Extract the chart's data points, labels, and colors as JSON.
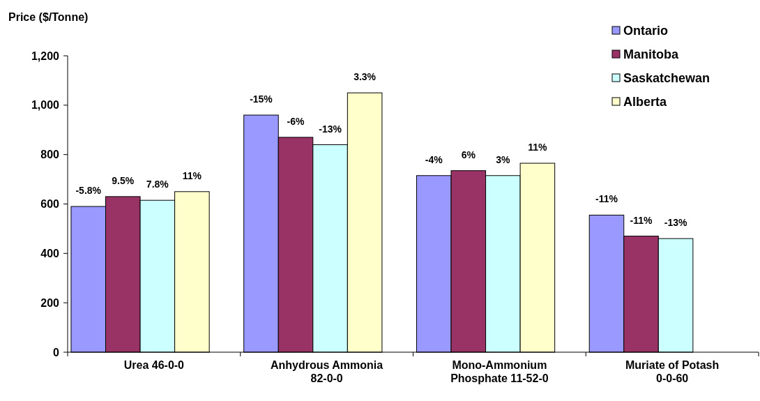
{
  "chart_data": {
    "type": "bar",
    "ylabel": "Price ($/Tonne)",
    "categories": [
      "Urea 46-0-0",
      "Anhydrous Ammonia\n82-0-0",
      "Mono-Ammonium\nPhosphate 11-52-0",
      "Muriate of Potash\n0-0-60"
    ],
    "series": [
      {
        "name": "Ontario",
        "color": "#9999ff",
        "values": [
          590,
          960,
          715,
          555
        ]
      },
      {
        "name": "Manitoba",
        "color": "#993366",
        "values": [
          630,
          870,
          735,
          470
        ]
      },
      {
        "name": "Saskatchewan",
        "color": "#ccffff",
        "values": [
          615,
          840,
          715,
          460
        ]
      },
      {
        "name": "Alberta",
        "color": "#ffffcc",
        "values": [
          650,
          1050,
          765,
          null
        ]
      }
    ],
    "annotations": [
      "-5.8%",
      "9.5%",
      "7.8%",
      "11%",
      "-15%",
      "-6%",
      "-13%",
      "3.3%",
      "-4%",
      "6%",
      "3%",
      "11%",
      "-11%",
      "-11%",
      "-13%"
    ],
    "ylim": [
      0,
      1200
    ],
    "yticks": [
      0,
      {
        "value": 200,
        "label": "200"
      },
      {
        "value": 400,
        "label": "400"
      },
      {
        "value": 600,
        "label": "600"
      },
      {
        "value": 800,
        "label": "800"
      },
      {
        "value": 1000,
        "label": "1,000"
      },
      {
        "value": 1200,
        "label": "1,200"
      }
    ],
    "grid": false,
    "legend": "top right"
  }
}
